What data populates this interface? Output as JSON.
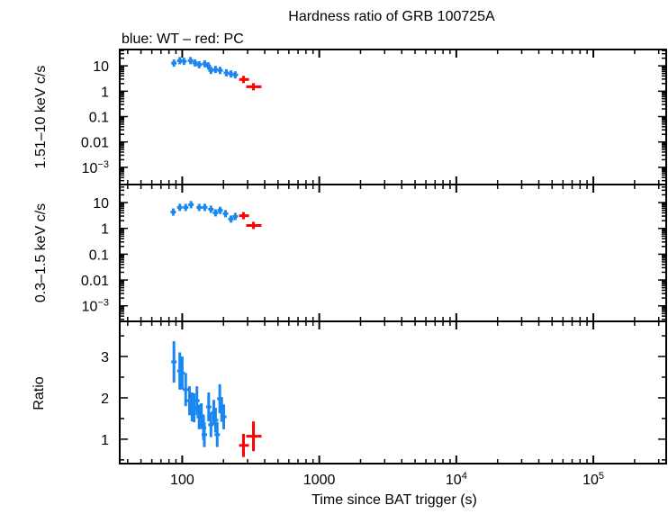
{
  "chart_data": [
    {
      "type": "scatter",
      "title": "Hardness ratio of GRB 100725A",
      "subtitle": "blue: WT – red: PC",
      "ylabel": "1.51–10 keV c/s",
      "yscale": "log",
      "ylim": [
        0.00021,
        44
      ],
      "yticks": [
        {
          "v": 10,
          "label": "10"
        },
        {
          "v": 1,
          "label": "1"
        },
        {
          "v": 0.1,
          "label": "0.1"
        },
        {
          "v": 0.01,
          "label": "0.01"
        },
        {
          "v": 0.001,
          "label": "10",
          "sup": "−3"
        }
      ],
      "series": [
        {
          "mode": "WT",
          "color": "#1a86f0",
          "x": [
            87,
            96,
            103,
            115,
            124,
            133,
            146,
            155,
            162,
            175,
            189,
            210,
            227,
            244
          ],
          "y": [
            12.8,
            16,
            15,
            16,
            13,
            11,
            12,
            10,
            6.6,
            7.2,
            6.6,
            5.3,
            4.8,
            4.4
          ]
        },
        {
          "mode": "PC",
          "color": "#ff0000",
          "x": [
            280,
            331
          ],
          "xerr_low": [
            260,
            293
          ],
          "xerr_high": [
            307,
            379
          ],
          "y": [
            2.9,
            1.5
          ]
        }
      ]
    },
    {
      "type": "scatter",
      "ylabel": "0.3–1.5 keV c/s",
      "yscale": "log",
      "ylim": [
        0.00025,
        50
      ],
      "yticks": [
        {
          "v": 10,
          "label": "10"
        },
        {
          "v": 1,
          "label": "1"
        },
        {
          "v": 0.1,
          "label": "0.1"
        },
        {
          "v": 0.01,
          "label": "0.01"
        },
        {
          "v": 0.001,
          "label": "10",
          "sup": "−3"
        }
      ],
      "series": [
        {
          "mode": "WT",
          "color": "#1a86f0",
          "x": [
            86,
            96,
            106,
            116,
            133,
            146,
            162,
            175,
            189,
            207,
            227,
            244
          ],
          "y": [
            4.3,
            6.5,
            6.5,
            8.3,
            6.5,
            6.5,
            5.5,
            4,
            5,
            3.7,
            2.3,
            2.9
          ]
        },
        {
          "mode": "PC",
          "color": "#ff0000",
          "x": [
            280,
            331
          ],
          "xerr_low": [
            260,
            293
          ],
          "xerr_high": [
            307,
            379
          ],
          "y": [
            3.1,
            1.3
          ]
        }
      ]
    },
    {
      "type": "scatter",
      "ylabel": "Ratio",
      "xlabel": "Time since BAT trigger (s)",
      "yscale": "linear",
      "ylim": [
        0.41,
        3.85
      ],
      "yticks": [
        {
          "v": 1,
          "label": "1"
        },
        {
          "v": 2,
          "label": "2"
        },
        {
          "v": 3,
          "label": "3"
        }
      ],
      "series": [
        {
          "mode": "WT",
          "color": "#1a86f0",
          "x": [
            87,
            96,
            100,
            106,
            113,
            118,
            122,
            128,
            133,
            138,
            143,
            145,
            156,
            162,
            170,
            175,
            180,
            188,
            194,
            201
          ],
          "y": [
            2.87,
            2.65,
            2.6,
            2.2,
            1.93,
            1.78,
            1.76,
            1.93,
            1.54,
            1.57,
            1.28,
            1.11,
            1.78,
            1.35,
            1.65,
            1.46,
            1.11,
            1.98,
            1.72,
            1.54
          ],
          "yerr": [
            0.5,
            0.45,
            0.4,
            0.4,
            0.35,
            0.35,
            0.35,
            0.35,
            0.3,
            0.3,
            0.3,
            0.3,
            0.35,
            0.3,
            0.3,
            0.3,
            0.3,
            0.35,
            0.3,
            0.3
          ]
        },
        {
          "mode": "PC",
          "color": "#ff0000",
          "x": [
            280,
            331
          ],
          "xerr_low": [
            260,
            293
          ],
          "xerr_high": [
            307,
            379
          ],
          "y": [
            0.85,
            1.07
          ],
          "yerr": [
            0.28,
            0.36
          ]
        }
      ]
    }
  ],
  "xaxis": {
    "scale": "log",
    "xlim": [
      35,
      340000
    ],
    "ticks": [
      {
        "v": 100,
        "label": "100"
      },
      {
        "v": 1000,
        "label": "1000"
      },
      {
        "v": 10000,
        "label": "10",
        "sup": "4"
      },
      {
        "v": 100000,
        "label": "10",
        "sup": "5"
      }
    ]
  }
}
